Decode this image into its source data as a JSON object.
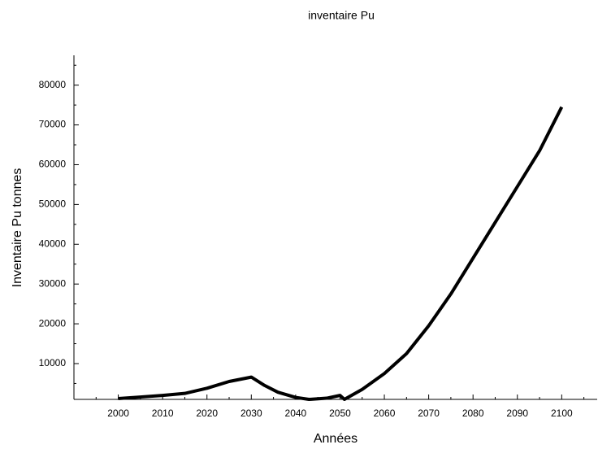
{
  "chart_data": {
    "type": "line",
    "title": "inventaire Pu",
    "x_label": "Années",
    "y_label": "Inventaire Pu tonnes",
    "x": [
      2000,
      2005,
      2010,
      2015,
      2020,
      2025,
      2030,
      2033,
      2036,
      2040,
      2043,
      2047,
      2050,
      2051,
      2055,
      2060,
      2065,
      2070,
      2075,
      2080,
      2085,
      2090,
      2095,
      2100
    ],
    "series": [
      {
        "name": "inventaire Pu",
        "color": "#000000",
        "values": [
          1200,
          1600,
          2000,
          2500,
          3800,
          5500,
          6600,
          4500,
          2800,
          1500,
          1000,
          1300,
          2000,
          1000,
          3500,
          7500,
          12500,
          19500,
          27500,
          36500,
          45500,
          54500,
          63500,
          74500
        ]
      }
    ],
    "xlim": [
      1990,
      2108
    ],
    "xticks": [
      2000,
      2010,
      2020,
      2030,
      2040,
      2050,
      2060,
      2070,
      2080,
      2090,
      2100
    ],
    "xminor": [
      1995,
      2005,
      2015,
      2025,
      2035,
      2045,
      2055,
      2065,
      2075,
      2085,
      2095,
      2105
    ],
    "ylim": [
      1000,
      87500
    ],
    "yticks": [
      10000,
      20000,
      30000,
      40000,
      50000,
      60000,
      70000,
      80000
    ],
    "yminor": [
      5000,
      15000,
      25000,
      35000,
      45000,
      55000,
      65000,
      75000,
      85000
    ],
    "grid": false
  }
}
